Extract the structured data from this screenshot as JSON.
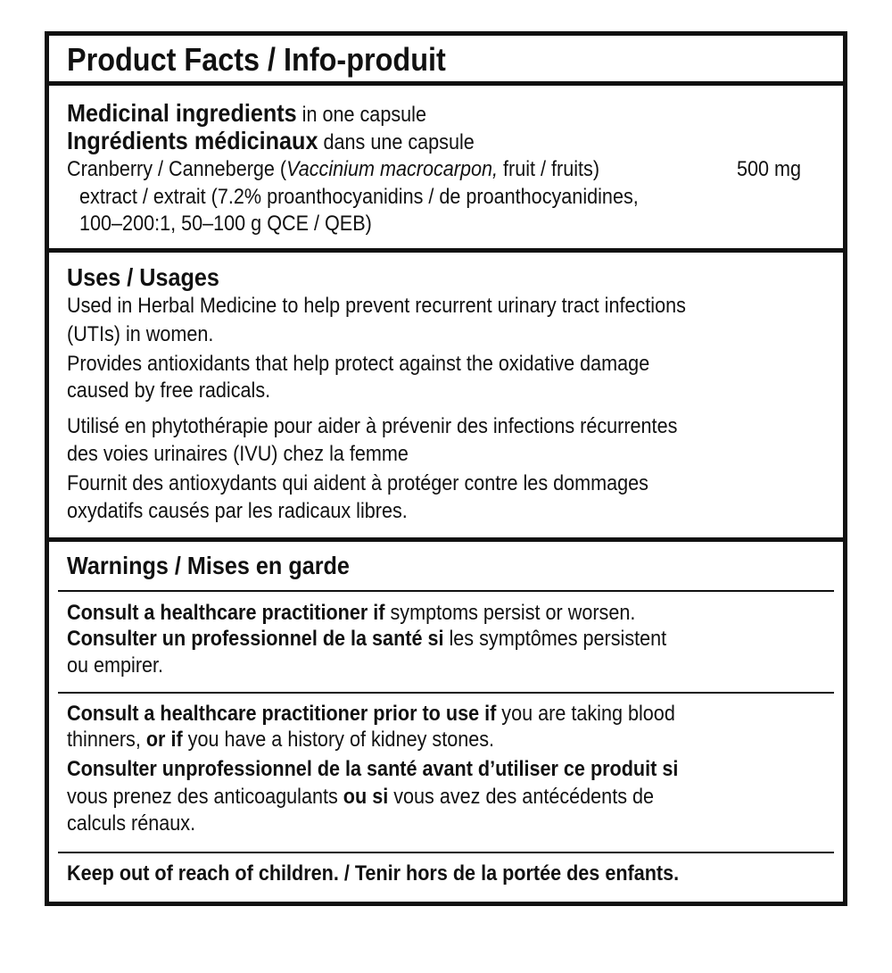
{
  "header": {
    "title": "Product Facts / Info-produit"
  },
  "ingredients": {
    "heading_en": "Medicinal ingredients",
    "qualifier_en": " in one capsule",
    "heading_fr": "Ingrédients médicinaux",
    "qualifier_fr": " dans une capsule",
    "name_prefix": "Cranberry / Canneberge (",
    "latin_name": "Vaccinium macrocarpon,",
    "name_suffix": " fruit / fruits)",
    "amount": "500 mg",
    "detail_lines": [
      "extract / extrait (7.2% proanthocyanidins / de proanthocyanidines,",
      "100–200:1, 50–100 g QCE / QEB)"
    ]
  },
  "uses": {
    "heading": "Uses / Usages",
    "english_lines": [
      "Used in Herbal Medicine to help prevent recurrent urinary tract infections",
      "(UTIs) in women.",
      "Provides antioxidants that help protect against the oxidative damage",
      "caused by free radicals."
    ],
    "french_lines": [
      "Utilisé en phytothérapie pour aider à prévenir des infections récurrentes",
      "des voies urinaires (IVU) chez la femme",
      "Fournit des antioxydants qui aident à protéger contre les dommages",
      "oxydatifs causés par les radicaux libres."
    ]
  },
  "warnings": {
    "heading": "Warnings / Mises en garde",
    "block1": {
      "bold_en": "Consult a healthcare practitioner if",
      "text_en": " symptoms persist or worsen.",
      "bold_fr": "Consulter un professionnel de la santé si",
      "text_fr": " les symptômes persistent",
      "text_fr_2": "ou empirer."
    },
    "block2": {
      "bold_en": "Consult a healthcare practitioner prior to use if",
      "text_en": " you are taking blood",
      "text_en_2a": "thinners, ",
      "bold_en_2": "or if",
      "text_en_2b": " you have a history of kidney stones.",
      "bold_fr": "Consulter unprofessionnel de la santé avant d’utiliser ce produit si",
      "text_fr_2a": "vous prenez des anticoagulants ",
      "bold_fr_2": "ou si",
      "text_fr_2b": " vous avez des antécédents de",
      "text_fr_3": "calculs rénaux."
    },
    "keep_out": "Keep out of reach of children. / Tenir hors de la portée des enfants."
  }
}
